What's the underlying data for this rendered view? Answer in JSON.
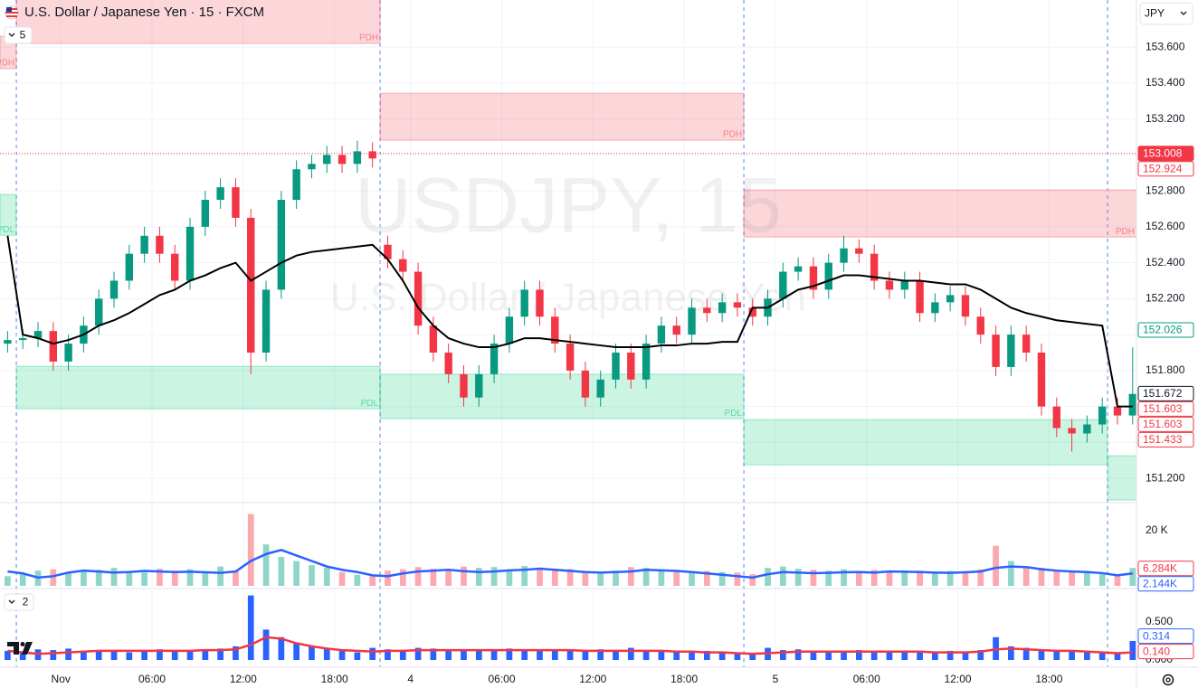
{
  "header": {
    "title": "U.S. Dollar / Japanese Yen · 15 · FXCM",
    "indicator_count": 5,
    "currency": "JPY"
  },
  "watermark": {
    "symbol": "USDJPY, 15",
    "name": "U.S. Dollar / Japanese Yen"
  },
  "chart_data": [
    {
      "type": "candlestick",
      "x": [
        2,
        6,
        10,
        14,
        18,
        22,
        26,
        30,
        34,
        38,
        42,
        46,
        50,
        54,
        58,
        62,
        66,
        70,
        74,
        78,
        82,
        86,
        90,
        94,
        98,
        102,
        106,
        110,
        114,
        118,
        122,
        126,
        130,
        134,
        138,
        142,
        146,
        150,
        154,
        158,
        162,
        166,
        170,
        174,
        178,
        182,
        186,
        190,
        194,
        198,
        202,
        206,
        210,
        214,
        218,
        222,
        226,
        230,
        234,
        238,
        242,
        246,
        250,
        254,
        258,
        262,
        266,
        270,
        274,
        278,
        282,
        286,
        290,
        294,
        298
      ],
      "open": [
        151.95,
        151.97,
        151.98,
        152.02,
        151.85,
        151.95,
        152.05,
        152.2,
        152.3,
        152.45,
        152.55,
        152.45,
        152.3,
        152.6,
        152.75,
        152.82,
        152.65,
        151.9,
        152.25,
        152.75,
        152.92,
        152.95,
        153.0,
        152.95,
        153.02,
        152.5,
        152.42,
        152.35,
        152.05,
        151.9,
        151.78,
        151.65,
        151.78,
        151.95,
        152.1,
        152.25,
        152.1,
        151.95,
        151.8,
        151.65,
        151.75,
        151.9,
        151.75,
        151.95,
        152.05,
        152.0,
        152.15,
        152.12,
        152.18,
        152.15,
        152.1,
        152.2,
        152.35,
        152.38,
        152.25,
        152.4,
        152.48,
        152.45,
        152.3,
        152.25,
        152.3,
        152.12,
        152.18,
        152.22,
        152.1,
        152.0,
        151.82,
        152.0,
        151.9,
        151.6,
        151.48,
        151.45,
        151.5,
        151.6,
        151.55
      ],
      "high": [
        152.02,
        152.03,
        152.07,
        152.07,
        152.0,
        152.1,
        152.25,
        152.35,
        152.5,
        152.6,
        152.6,
        152.5,
        152.65,
        152.8,
        152.87,
        152.87,
        152.7,
        152.3,
        152.8,
        152.97,
        153.0,
        153.05,
        153.05,
        153.08,
        153.07,
        152.55,
        152.47,
        152.4,
        152.1,
        151.95,
        151.83,
        151.83,
        152.0,
        152.15,
        152.3,
        152.3,
        152.15,
        152.0,
        151.85,
        151.8,
        151.95,
        151.95,
        152.0,
        152.1,
        152.1,
        152.2,
        152.2,
        152.23,
        152.23,
        152.2,
        152.25,
        152.4,
        152.43,
        152.43,
        152.45,
        152.55,
        152.53,
        152.5,
        152.35,
        152.35,
        152.35,
        152.23,
        152.27,
        152.27,
        152.15,
        152.05,
        152.05,
        152.05,
        151.95,
        151.65,
        151.53,
        151.55,
        151.65,
        151.65,
        151.93
      ],
      "low": [
        151.9,
        151.92,
        151.93,
        151.8,
        151.8,
        151.9,
        152.0,
        152.15,
        152.25,
        152.4,
        152.4,
        152.25,
        152.25,
        152.55,
        152.7,
        152.6,
        151.78,
        151.85,
        152.2,
        152.7,
        152.87,
        152.9,
        152.9,
        152.9,
        152.93,
        152.37,
        152.3,
        152.0,
        151.85,
        151.73,
        151.6,
        151.6,
        151.73,
        151.9,
        152.05,
        152.05,
        151.9,
        151.75,
        151.6,
        151.6,
        151.7,
        151.7,
        151.7,
        151.9,
        151.95,
        151.95,
        152.07,
        152.07,
        152.1,
        152.05,
        152.05,
        152.15,
        152.3,
        152.2,
        152.2,
        152.35,
        152.4,
        152.25,
        152.2,
        152.2,
        152.07,
        152.07,
        152.13,
        152.05,
        151.95,
        151.77,
        151.77,
        151.85,
        151.55,
        151.43,
        151.35,
        151.4,
        151.45,
        151.5,
        151.5
      ],
      "close": [
        151.97,
        151.98,
        152.02,
        151.85,
        151.95,
        152.05,
        152.2,
        152.3,
        152.45,
        152.55,
        152.45,
        152.3,
        152.6,
        152.75,
        152.82,
        152.65,
        151.9,
        152.25,
        152.75,
        152.92,
        152.95,
        153.0,
        152.95,
        153.02,
        152.98,
        152.42,
        152.35,
        152.05,
        151.9,
        151.78,
        151.65,
        151.78,
        151.95,
        152.1,
        152.25,
        152.1,
        151.95,
        151.8,
        151.65,
        151.75,
        151.9,
        151.75,
        151.95,
        152.05,
        152.0,
        152.15,
        152.12,
        152.18,
        152.15,
        152.1,
        152.2,
        152.35,
        152.38,
        152.25,
        152.4,
        152.48,
        152.45,
        152.3,
        152.25,
        152.3,
        152.12,
        152.18,
        152.22,
        152.1,
        152.0,
        151.82,
        152.0,
        151.9,
        151.6,
        151.48,
        151.45,
        151.5,
        151.6,
        151.55,
        151.67
      ],
      "up_color": "#089981",
      "down_color": "#f23645",
      "vwap": {
        "color": "#000000",
        "values": [
          152.55,
          152.0,
          151.98,
          151.95,
          151.97,
          152.0,
          152.05,
          152.08,
          152.12,
          152.17,
          152.22,
          152.25,
          152.3,
          152.33,
          152.37,
          152.4,
          152.3,
          152.35,
          152.4,
          152.44,
          152.46,
          152.47,
          152.48,
          152.49,
          152.5,
          152.42,
          152.3,
          152.15,
          152.05,
          151.98,
          151.95,
          151.93,
          151.93,
          151.95,
          151.98,
          151.98,
          151.97,
          151.96,
          151.95,
          151.94,
          151.93,
          151.93,
          151.93,
          151.94,
          151.94,
          151.95,
          151.95,
          151.96,
          151.96,
          152.15,
          152.15,
          152.2,
          152.25,
          152.27,
          152.3,
          152.33,
          152.33,
          152.32,
          152.31,
          152.3,
          152.3,
          152.29,
          152.28,
          152.28,
          152.25,
          152.2,
          152.15,
          152.12,
          152.1,
          152.08,
          152.07,
          152.06,
          152.05,
          151.6,
          151.6
        ]
      },
      "zones": [
        {
          "label": "PDH",
          "x": [
            4.3,
            100
          ],
          "y": [
            153.62,
            153.87
          ],
          "color": "#f23645"
        },
        {
          "label": "PDH",
          "x": [
            0,
            4.3
          ],
          "y": [
            153.48,
            153.66
          ],
          "color": "#f23645"
        },
        {
          "label": "PDH",
          "x": [
            100,
            195.7
          ],
          "y": [
            153.082,
            153.343
          ],
          "color": "#f23645"
        },
        {
          "label": "PDH",
          "x": [
            195.7,
            299
          ],
          "y": [
            152.543,
            152.805
          ],
          "color": "#f23645"
        },
        {
          "label": "PDL",
          "x": [
            0,
            4.3
          ],
          "y": [
            152.553,
            152.78
          ],
          "color": "#00c774"
        },
        {
          "label": "PDL",
          "x": [
            4.3,
            100
          ],
          "y": [
            151.587,
            151.824
          ],
          "color": "#00c774"
        },
        {
          "label": "PDL",
          "x": [
            100,
            195.7
          ],
          "y": [
            151.532,
            151.78
          ],
          "color": "#00c774"
        },
        {
          "x": [
            195.7,
            291.4
          ],
          "y": [
            151.275,
            151.527
          ],
          "color": "#00c774"
        },
        {
          "x": [
            291.4,
            299
          ],
          "y": [
            151.08,
            151.326
          ],
          "color": "#00c774"
        }
      ],
      "session_breaks": [
        4.3,
        100,
        195.7,
        291.4
      ],
      "xlim": [
        0,
        299
      ],
      "xticks": [
        {
          "value": 16,
          "label": "Nov"
        },
        {
          "value": 40,
          "label": "06:00"
        },
        {
          "value": 64,
          "label": "12:00"
        },
        {
          "value": 88,
          "label": "18:00"
        },
        {
          "value": 108,
          "label": "4"
        },
        {
          "value": 132,
          "label": "06:00"
        },
        {
          "value": 156,
          "label": "12:00"
        },
        {
          "value": 180,
          "label": "18:00"
        },
        {
          "value": 204,
          "label": "5"
        },
        {
          "value": 228,
          "label": "06:00"
        },
        {
          "value": 252,
          "label": "12:00"
        },
        {
          "value": 276,
          "label": "18:00"
        }
      ],
      "ylim": [
        151.07,
        153.862
      ],
      "yticks": [
        {
          "value": 153.6,
          "label": "153.600"
        },
        {
          "value": 153.4,
          "label": "153.400"
        },
        {
          "value": 153.2,
          "label": "153.200"
        },
        {
          "value": 153.0,
          "label": "153.000"
        },
        {
          "value": 152.8,
          "label": "152.800"
        },
        {
          "value": 152.6,
          "label": "152.600"
        },
        {
          "value": 152.4,
          "label": "152.400"
        },
        {
          "value": 152.2,
          "label": "152.200"
        },
        {
          "value": 152.0,
          "label": "152.000"
        },
        {
          "value": 151.8,
          "label": "151.800"
        },
        {
          "value": 151.6,
          "label": "151.600"
        },
        {
          "value": 151.4,
          "label": "151.400"
        },
        {
          "value": 151.2,
          "label": "151.200"
        }
      ],
      "grid": true,
      "tags": [
        {
          "value": 153.008,
          "color": "#f23645",
          "filled": true,
          "line": true
        },
        {
          "value": 152.924,
          "color": "#f23645"
        },
        {
          "value": 152.026,
          "color": "#089981"
        },
        {
          "value": 151.672,
          "color": "#131722"
        },
        {
          "value": 151.603,
          "color": "#f23645"
        },
        {
          "value": 151.603,
          "color": "#f23645"
        },
        {
          "value": 151.433,
          "color": "#f23645"
        }
      ]
    },
    {
      "type": "bar",
      "values": [
        3500,
        4200,
        5500,
        6000,
        4800,
        5200,
        5800,
        6500,
        5000,
        4800,
        6200,
        5500,
        6000,
        5200,
        7000,
        5500,
        26000,
        15000,
        10500,
        9000,
        7500,
        6500,
        5000,
        4000,
        3500,
        5500,
        6000,
        6800,
        6200,
        5500,
        7000,
        6500,
        6800,
        6000,
        7200,
        6600,
        5800,
        6100,
        5400,
        5000,
        5500,
        6800,
        6500,
        6000,
        5800,
        5200,
        5400,
        5000,
        4800,
        4200,
        6500,
        7000,
        6200,
        5800,
        5500,
        6000,
        5400,
        5800,
        5200,
        5600,
        5500,
        5000,
        5400,
        5200,
        6000,
        14500,
        9000,
        7000,
        6500,
        5800,
        5000,
        4800,
        4200,
        3800,
        6500
      ],
      "up_color": "#22ab94",
      "down_color": "#f7525f",
      "ma": {
        "color": "#2962ff",
        "values": [
          5200,
          4500,
          3000,
          3500,
          4800,
          5500,
          5200,
          4800,
          5000,
          5400,
          5200,
          5000,
          5100,
          4900,
          4700,
          5200,
          9000,
          11500,
          13000,
          11000,
          9000,
          7000,
          5800,
          5000,
          3800,
          3500,
          4500,
          5200,
          5500,
          5800,
          5300,
          5000,
          5200,
          5600,
          5800,
          6200,
          5800,
          5400,
          5000,
          4800,
          5000,
          5200,
          5800,
          5600,
          5400,
          5000,
          4500,
          4000,
          3500,
          3000,
          4200,
          5000,
          4800,
          4600,
          4700,
          4900,
          5000,
          4800,
          5200,
          5100,
          5000,
          4800,
          4700,
          4900,
          5200,
          6500,
          7000,
          6800,
          6000,
          5500,
          5200,
          5000,
          4600,
          3800,
          4500
        ]
      },
      "ylim": [
        0,
        28800
      ],
      "yticks": [
        {
          "value": 20000,
          "label": "20 K"
        }
      ],
      "tags": [
        {
          "value": 6284,
          "label": "6.284K",
          "color": "#f23645"
        },
        {
          "value": 2144,
          "label": "2.144K",
          "color": "#2962ff"
        }
      ]
    },
    {
      "type": "bar",
      "indicator_count": 2,
      "values": [
        0.12,
        0.1,
        0.14,
        0.13,
        0.15,
        0.12,
        0.11,
        0.13,
        0.1,
        0.12,
        0.14,
        0.11,
        0.12,
        0.13,
        0.15,
        0.18,
        0.85,
        0.4,
        0.3,
        0.22,
        0.18,
        0.15,
        0.12,
        0.1,
        0.16,
        0.14,
        0.12,
        0.16,
        0.15,
        0.13,
        0.14,
        0.12,
        0.13,
        0.15,
        0.12,
        0.14,
        0.13,
        0.12,
        0.11,
        0.14,
        0.13,
        0.16,
        0.12,
        0.12,
        0.11,
        0.1,
        0.12,
        0.1,
        0.09,
        0.08,
        0.16,
        0.13,
        0.14,
        0.12,
        0.11,
        0.12,
        0.13,
        0.11,
        0.12,
        0.1,
        0.11,
        0.09,
        0.12,
        0.11,
        0.13,
        0.3,
        0.18,
        0.16,
        0.14,
        0.12,
        0.11,
        0.1,
        0.09,
        0.08,
        0.25
      ],
      "color": "#2962ff",
      "ma": {
        "color": "#f23645",
        "values": [
          0.12,
          0.1,
          0.08,
          0.09,
          0.1,
          0.11,
          0.12,
          0.12,
          0.12,
          0.12,
          0.12,
          0.12,
          0.12,
          0.13,
          0.13,
          0.14,
          0.2,
          0.3,
          0.28,
          0.22,
          0.18,
          0.15,
          0.13,
          0.12,
          0.11,
          0.12,
          0.12,
          0.13,
          0.13,
          0.13,
          0.13,
          0.13,
          0.13,
          0.13,
          0.13,
          0.13,
          0.13,
          0.13,
          0.12,
          0.12,
          0.12,
          0.12,
          0.12,
          0.12,
          0.11,
          0.11,
          0.1,
          0.1,
          0.09,
          0.08,
          0.09,
          0.1,
          0.11,
          0.11,
          0.11,
          0.11,
          0.11,
          0.11,
          0.11,
          0.11,
          0.11,
          0.1,
          0.1,
          0.1,
          0.11,
          0.14,
          0.15,
          0.14,
          0.13,
          0.12,
          0.12,
          0.11,
          0.1,
          0.09,
          0.1
        ]
      },
      "ylim": [
        0,
        0.893
      ],
      "yticks": [
        {
          "value": 0.5,
          "label": "0.500"
        },
        {
          "value": 0,
          "label": "0.000"
        }
      ],
      "tags": [
        {
          "value": 0.314,
          "color": "#2962ff"
        },
        {
          "value": 0.14,
          "label": "0.140",
          "color": "#f23645"
        }
      ]
    }
  ]
}
